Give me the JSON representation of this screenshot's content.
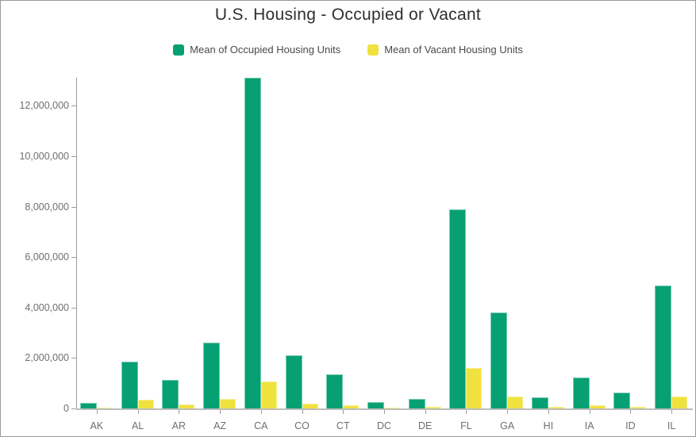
{
  "chart_data": {
    "type": "bar",
    "title": "U.S. Housing - Occupied or Vacant",
    "xlabel": "",
    "ylabel": "",
    "grid": false,
    "legend_position": "top",
    "categories": [
      "AK",
      "AL",
      "AR",
      "AZ",
      "CA",
      "CO",
      "CT",
      "DC",
      "DE",
      "FL",
      "GA",
      "HI",
      "IA",
      "ID",
      "IL"
    ],
    "series": [
      {
        "name": "Mean of Occupied Housing Units",
        "color": "#06A073",
        "values": [
          220000,
          1850000,
          1130000,
          2600000,
          13100000,
          2100000,
          1350000,
          250000,
          380000,
          7900000,
          3800000,
          445000,
          1240000,
          620000,
          4870000
        ]
      },
      {
        "name": "Mean of Vacant Housing Units",
        "color": "#F0E23E",
        "values": [
          45000,
          340000,
          165000,
          365000,
          1070000,
          190000,
          115000,
          35000,
          55000,
          1590000,
          460000,
          55000,
          115000,
          75000,
          470000
        ]
      }
    ],
    "y_axis": {
      "max": 13200000,
      "ticks": [
        {
          "value": 0,
          "label": "0"
        },
        {
          "value": 2000000,
          "label": "2,000,000"
        },
        {
          "value": 4000000,
          "label": "4,000,000"
        },
        {
          "value": 6000000,
          "label": "6,000,000"
        },
        {
          "value": 8000000,
          "label": "8,000,000"
        },
        {
          "value": 10000000,
          "label": "10,000,000"
        },
        {
          "value": 12000000,
          "label": "12,000,000"
        }
      ]
    }
  }
}
